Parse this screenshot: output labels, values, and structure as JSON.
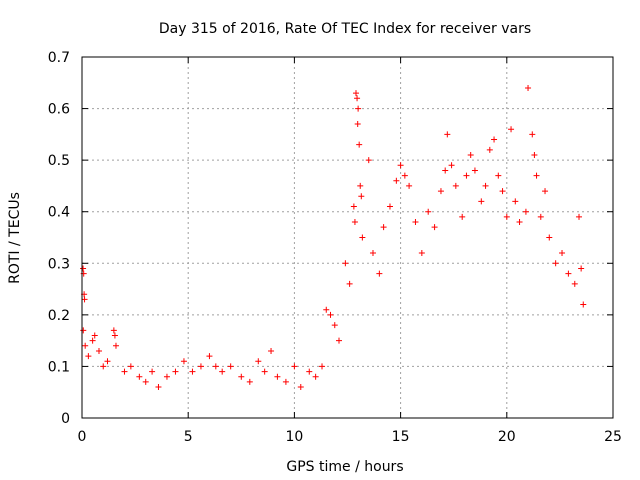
{
  "chart_data": {
    "type": "scatter",
    "title": "Day 315 of 2016, Rate Of TEC Index for receiver vars",
    "xlabel": "GPS time / hours",
    "ylabel": "ROTI / TECUs",
    "xlim": [
      0,
      25
    ],
    "ylim": [
      0,
      0.7
    ],
    "grid": true,
    "marker": "+",
    "color": "#ff0000",
    "x_ticks": [
      0,
      5,
      10,
      15,
      20,
      25
    ],
    "x_tick_labels": [
      "0",
      "5",
      "10",
      "15",
      "20",
      "25"
    ],
    "y_ticks": [
      0,
      0.1,
      0.2,
      0.3,
      0.4,
      0.5,
      0.6,
      0.7
    ],
    "y_tick_labels": [
      "0",
      "0.1",
      "0.2",
      "0.3",
      "0.4",
      "0.5",
      "0.6",
      "0.7"
    ],
    "series": [
      {
        "name": "ROTI",
        "points": [
          [
            0.05,
            0.29
          ],
          [
            0.08,
            0.28
          ],
          [
            0.1,
            0.24
          ],
          [
            0.12,
            0.23
          ],
          [
            0.06,
            0.17
          ],
          [
            0.15,
            0.14
          ],
          [
            0.3,
            0.12
          ],
          [
            0.5,
            0.15
          ],
          [
            0.6,
            0.16
          ],
          [
            0.8,
            0.13
          ],
          [
            1.0,
            0.1
          ],
          [
            1.2,
            0.11
          ],
          [
            1.5,
            0.17
          ],
          [
            1.55,
            0.16
          ],
          [
            1.6,
            0.14
          ],
          [
            2.0,
            0.09
          ],
          [
            2.3,
            0.1
          ],
          [
            2.7,
            0.08
          ],
          [
            3.0,
            0.07
          ],
          [
            3.3,
            0.09
          ],
          [
            3.6,
            0.06
          ],
          [
            4.0,
            0.08
          ],
          [
            4.4,
            0.09
          ],
          [
            4.8,
            0.11
          ],
          [
            5.2,
            0.09
          ],
          [
            5.6,
            0.1
          ],
          [
            6.0,
            0.12
          ],
          [
            6.3,
            0.1
          ],
          [
            6.6,
            0.09
          ],
          [
            7.0,
            0.1
          ],
          [
            7.5,
            0.08
          ],
          [
            7.9,
            0.07
          ],
          [
            8.3,
            0.11
          ],
          [
            8.6,
            0.09
          ],
          [
            8.9,
            0.13
          ],
          [
            9.2,
            0.08
          ],
          [
            9.6,
            0.07
          ],
          [
            10.0,
            0.1
          ],
          [
            10.3,
            0.06
          ],
          [
            10.7,
            0.09
          ],
          [
            11.0,
            0.08
          ],
          [
            11.3,
            0.1
          ],
          [
            11.5,
            0.21
          ],
          [
            11.7,
            0.2
          ],
          [
            11.9,
            0.18
          ],
          [
            12.1,
            0.15
          ],
          [
            12.4,
            0.3
          ],
          [
            12.6,
            0.26
          ],
          [
            12.8,
            0.41
          ],
          [
            12.85,
            0.38
          ],
          [
            12.9,
            0.63
          ],
          [
            12.95,
            0.62
          ],
          [
            13.0,
            0.6
          ],
          [
            12.98,
            0.57
          ],
          [
            13.05,
            0.53
          ],
          [
            13.1,
            0.45
          ],
          [
            13.15,
            0.43
          ],
          [
            13.2,
            0.35
          ],
          [
            13.5,
            0.5
          ],
          [
            13.7,
            0.32
          ],
          [
            14.0,
            0.28
          ],
          [
            14.2,
            0.37
          ],
          [
            14.5,
            0.41
          ],
          [
            14.8,
            0.46
          ],
          [
            15.0,
            0.49
          ],
          [
            15.2,
            0.47
          ],
          [
            15.4,
            0.45
          ],
          [
            15.7,
            0.38
          ],
          [
            16.0,
            0.32
          ],
          [
            16.3,
            0.4
          ],
          [
            16.6,
            0.37
          ],
          [
            16.9,
            0.44
          ],
          [
            17.1,
            0.48
          ],
          [
            17.2,
            0.55
          ],
          [
            17.4,
            0.49
          ],
          [
            17.6,
            0.45
          ],
          [
            17.9,
            0.39
          ],
          [
            18.1,
            0.47
          ],
          [
            18.3,
            0.51
          ],
          [
            18.5,
            0.48
          ],
          [
            18.8,
            0.42
          ],
          [
            19.0,
            0.45
          ],
          [
            19.2,
            0.52
          ],
          [
            19.4,
            0.54
          ],
          [
            19.6,
            0.47
          ],
          [
            19.8,
            0.44
          ],
          [
            20.0,
            0.39
          ],
          [
            20.2,
            0.56
          ],
          [
            20.4,
            0.42
          ],
          [
            20.6,
            0.38
          ],
          [
            20.9,
            0.4
          ],
          [
            21.0,
            0.64
          ],
          [
            21.2,
            0.55
          ],
          [
            21.3,
            0.51
          ],
          [
            21.4,
            0.47
          ],
          [
            21.6,
            0.39
          ],
          [
            21.8,
            0.44
          ],
          [
            22.0,
            0.35
          ],
          [
            22.3,
            0.3
          ],
          [
            22.6,
            0.32
          ],
          [
            22.9,
            0.28
          ],
          [
            23.2,
            0.26
          ],
          [
            23.4,
            0.39
          ],
          [
            23.5,
            0.29
          ],
          [
            23.6,
            0.22
          ]
        ]
      }
    ]
  }
}
